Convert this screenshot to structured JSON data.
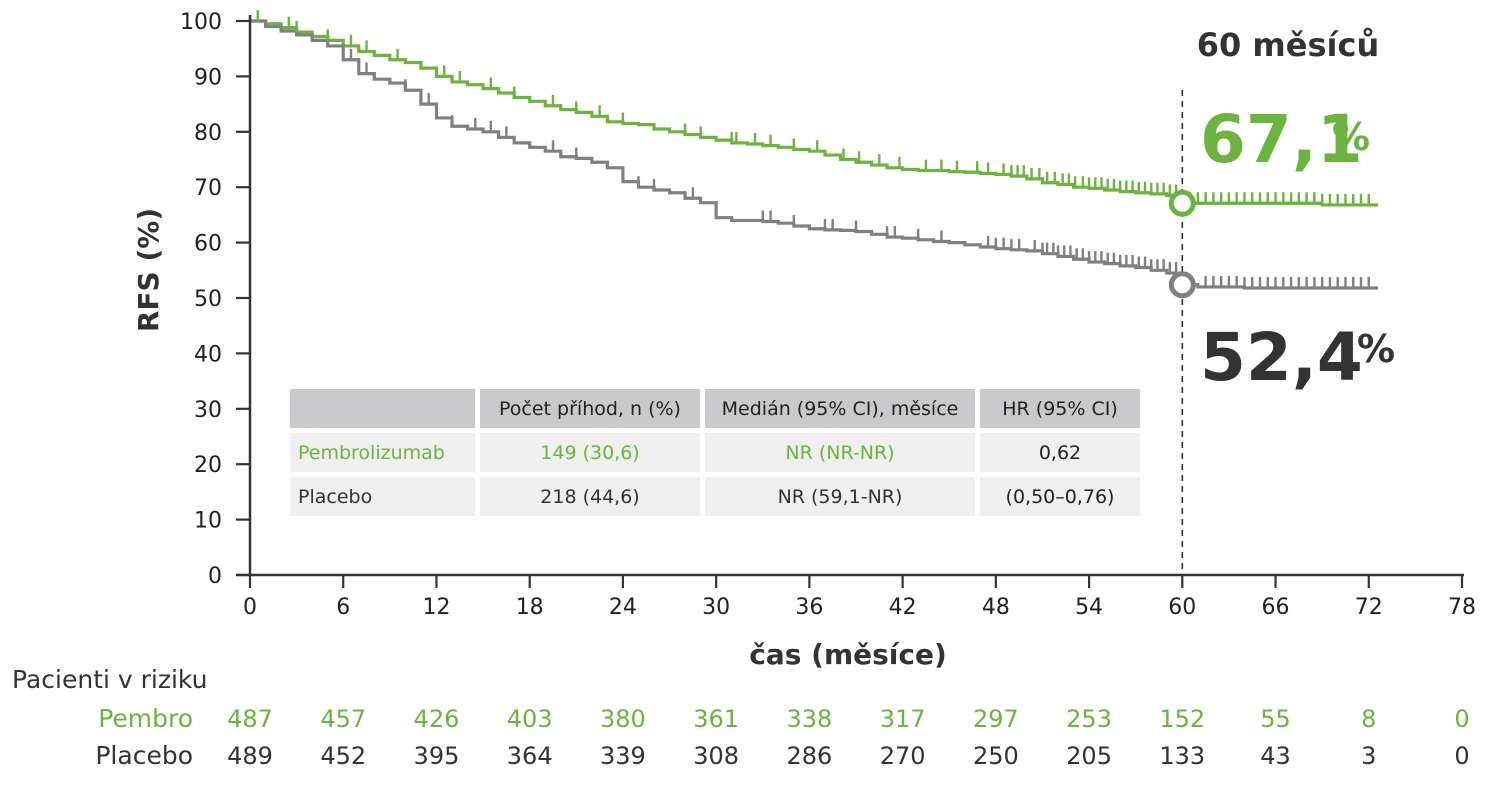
{
  "chart_data": {
    "type": "line",
    "subtype": "kaplan-meier",
    "ylabel": "RFS (%)",
    "xlabel": "čas (měsíce)",
    "xlim": [
      0,
      78
    ],
    "ylim": [
      0,
      100
    ],
    "x_ticks": [
      "0",
      "6",
      "12",
      "18",
      "24",
      "30",
      "36",
      "42",
      "48",
      "54",
      "60",
      "66",
      "72",
      "78"
    ],
    "y_ticks": [
      "0",
      "10",
      "20",
      "30",
      "40",
      "50",
      "60",
      "70",
      "80",
      "90",
      "100"
    ],
    "colors": {
      "pembro": "#6db33f",
      "placebo": "#808083",
      "text": "#333333"
    },
    "series": [
      {
        "name": "Pembrolizumab",
        "color": "#6db33f",
        "points": [
          [
            0,
            100
          ],
          [
            1,
            99.5
          ],
          [
            2,
            98.8
          ],
          [
            3,
            98
          ],
          [
            4,
            97.2
          ],
          [
            5,
            96.5
          ],
          [
            6,
            95.5
          ],
          [
            7,
            94.5
          ],
          [
            8,
            93.8
          ],
          [
            9,
            93
          ],
          [
            10,
            92.5
          ],
          [
            11,
            91.5
          ],
          [
            12,
            90
          ],
          [
            13,
            89
          ],
          [
            14,
            88.5
          ],
          [
            15,
            87.8
          ],
          [
            16,
            87
          ],
          [
            17,
            86.2
          ],
          [
            18,
            85.5
          ],
          [
            19,
            84.7
          ],
          [
            20,
            84
          ],
          [
            21,
            83.5
          ],
          [
            22,
            82.8
          ],
          [
            23,
            81.8
          ],
          [
            24,
            81.5
          ],
          [
            25,
            81.3
          ],
          [
            26,
            80.5
          ],
          [
            27,
            80
          ],
          [
            28,
            79.5
          ],
          [
            29,
            79
          ],
          [
            30,
            78.5
          ],
          [
            31,
            78
          ],
          [
            32,
            77.8
          ],
          [
            33,
            77.5
          ],
          [
            34,
            77.2
          ],
          [
            35,
            76.8
          ],
          [
            36,
            76.5
          ],
          [
            37,
            75.8
          ],
          [
            38,
            75
          ],
          [
            39,
            74.5
          ],
          [
            40,
            74
          ],
          [
            41,
            73.5
          ],
          [
            42,
            73.2
          ],
          [
            43,
            73
          ],
          [
            44,
            73
          ],
          [
            45,
            72.8
          ],
          [
            46,
            72.7
          ],
          [
            47,
            72.5
          ],
          [
            48,
            72.3
          ],
          [
            49,
            72
          ],
          [
            50,
            71.5
          ],
          [
            51,
            70.8
          ],
          [
            52,
            70.5
          ],
          [
            53,
            70
          ],
          [
            54,
            69.8
          ],
          [
            55,
            69.5
          ],
          [
            56,
            69.2
          ],
          [
            57,
            69
          ],
          [
            58,
            68.8
          ],
          [
            59,
            68.5
          ],
          [
            60,
            67.1
          ],
          [
            62,
            67.1
          ],
          [
            66,
            67.1
          ],
          [
            69,
            66.8
          ],
          [
            72.6,
            66.8
          ]
        ]
      },
      {
        "name": "Placebo",
        "color": "#808083",
        "points": [
          [
            0,
            100
          ],
          [
            1,
            99
          ],
          [
            2,
            98.2
          ],
          [
            3,
            97.5
          ],
          [
            4,
            96.5
          ],
          [
            5,
            95.5
          ],
          [
            6,
            93
          ],
          [
            7,
            90.5
          ],
          [
            8,
            89.5
          ],
          [
            9,
            88.8
          ],
          [
            10,
            87.5
          ],
          [
            11,
            85
          ],
          [
            12,
            82.5
          ],
          [
            13,
            81
          ],
          [
            14,
            80.5
          ],
          [
            15,
            80
          ],
          [
            16,
            79
          ],
          [
            17,
            78
          ],
          [
            18,
            77.2
          ],
          [
            19,
            76.5
          ],
          [
            20,
            75.5
          ],
          [
            21,
            75.2
          ],
          [
            22,
            74.5
          ],
          [
            23,
            73.5
          ],
          [
            24,
            71
          ],
          [
            25,
            70
          ],
          [
            26,
            69.5
          ],
          [
            27,
            69
          ],
          [
            28,
            68
          ],
          [
            29,
            67.2
          ],
          [
            30,
            64.5
          ],
          [
            31,
            64
          ],
          [
            32,
            64
          ],
          [
            33,
            63.8
          ],
          [
            34,
            63.5
          ],
          [
            35,
            63
          ],
          [
            36,
            62.5
          ],
          [
            37,
            62.3
          ],
          [
            38,
            62.2
          ],
          [
            39,
            62
          ],
          [
            40,
            61.5
          ],
          [
            41,
            61
          ],
          [
            42,
            60.8
          ],
          [
            43,
            60.5
          ],
          [
            44,
            60.2
          ],
          [
            45,
            60
          ],
          [
            46,
            59.6
          ],
          [
            47,
            59.2
          ],
          [
            48,
            58.9
          ],
          [
            49,
            58.7
          ],
          [
            50,
            58.5
          ],
          [
            51,
            58
          ],
          [
            52,
            57.5
          ],
          [
            53,
            57
          ],
          [
            54,
            56.5
          ],
          [
            55,
            56.2
          ],
          [
            56,
            55.8
          ],
          [
            57,
            55.5
          ],
          [
            58,
            55
          ],
          [
            59,
            54.5
          ],
          [
            60,
            52.4
          ],
          [
            61,
            52
          ],
          [
            64,
            51.8
          ],
          [
            72.6,
            51.8
          ]
        ]
      }
    ],
    "censor_ticks": {
      "pembrolizumab": [
        0.5,
        2.5,
        3,
        5,
        6.5,
        7.5,
        9.5,
        12.5,
        13.5,
        15.5,
        17,
        19.5,
        21,
        22.5,
        24,
        28,
        29,
        31,
        31.3,
        32.5,
        33.5,
        35,
        36.5,
        38.2,
        39.2,
        40.5,
        41.8,
        43.5,
        44.5,
        45.5,
        46.8,
        47.5,
        48.5,
        49,
        49.4,
        49.8,
        50.3,
        50.8,
        51.3,
        51.8,
        52.3,
        52.7,
        53.1,
        53.6,
        54,
        54.4,
        54.8,
        55.2,
        55.6,
        56,
        56.4,
        56.8,
        57.2,
        57.6,
        58,
        58.4,
        58.8,
        59.2,
        59.6,
        60.5,
        61,
        61.5,
        62,
        62.5,
        63,
        63.5,
        64,
        64.5,
        65,
        65.5,
        66,
        66.5,
        67,
        67.5,
        68,
        68.5,
        69,
        69.5,
        70,
        70.5,
        71,
        71.5,
        72
      ],
      "placebo": [
        6.5,
        7,
        7.5,
        10,
        11.5,
        13,
        14.5,
        15.5,
        16.5,
        19.5,
        21,
        25,
        26,
        28.5,
        33,
        33.5,
        35,
        37,
        37.5,
        39,
        41,
        41.5,
        43,
        44.5,
        47.5,
        48,
        48.5,
        49,
        49.5,
        50.5,
        51,
        51.3,
        51.7,
        52,
        52.4,
        52.8,
        53.2,
        53.6,
        54,
        54.4,
        54.8,
        55.2,
        55.6,
        56,
        56.4,
        56.8,
        57.2,
        57.6,
        58,
        58.4,
        58.8,
        59.2,
        59.6,
        61.5,
        62,
        62.5,
        63,
        63.5,
        64,
        64.5,
        65,
        65.5,
        66,
        66.5,
        67,
        67.5,
        68,
        68.5,
        69,
        69.5,
        70,
        70.5,
        71,
        71.5,
        72
      ]
    },
    "landmark": {
      "x": 60,
      "label": "60 měsíců",
      "pembro_value": 67.1,
      "pembro_label": "67,1",
      "placebo_value": 52.4,
      "placebo_label": "52,4",
      "pct_symbol": "%"
    },
    "risk_table": {
      "title": "Pacienti v riziku",
      "rows": [
        {
          "label": "Pembro",
          "color": "#6db33f",
          "values": [
            "487",
            "457",
            "426",
            "403",
            "380",
            "361",
            "338",
            "317",
            "297",
            "253",
            "152",
            "55",
            "8",
            "0"
          ]
        },
        {
          "label": "Placebo",
          "color": "#333333",
          "values": [
            "489",
            "452",
            "395",
            "364",
            "339",
            "308",
            "286",
            "270",
            "250",
            "205",
            "133",
            "43",
            "3",
            "0"
          ]
        }
      ]
    },
    "summary_table": {
      "headers": [
        "",
        "Počet příhod, n (%)",
        "Medián (95% CI), měsíce",
        "HR (95% CI)"
      ],
      "rows": [
        {
          "label": "Pembrolizumab",
          "events": "149 (30,6)",
          "median": "NR (NR-NR)",
          "hr": "0,62"
        },
        {
          "label": "Placebo",
          "events": "218 (44,6)",
          "median": "NR (59,1-NR)",
          "hr": "(0,50–0,76)"
        }
      ]
    }
  }
}
